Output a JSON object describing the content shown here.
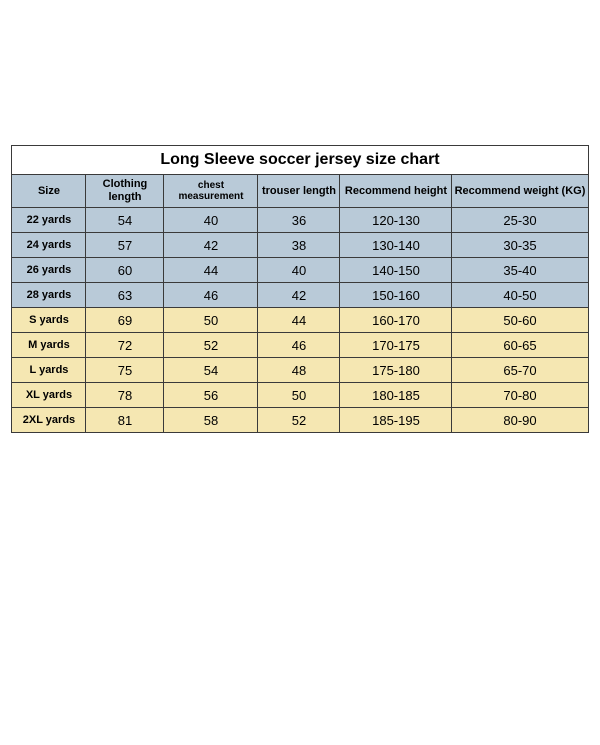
{
  "table": {
    "title": "Long Sleeve soccer jersey size chart",
    "columns": [
      "Size",
      "Clothing length",
      "chest measurement",
      "trouser length",
      "Recommend height",
      "Recommend weight (KG)"
    ],
    "rows": [
      {
        "group": "blue",
        "cells": [
          "22 yards",
          "54",
          "40",
          "36",
          "120-130",
          "25-30"
        ]
      },
      {
        "group": "blue",
        "cells": [
          "24 yards",
          "57",
          "42",
          "38",
          "130-140",
          "30-35"
        ]
      },
      {
        "group": "blue",
        "cells": [
          "26 yards",
          "60",
          "44",
          "40",
          "140-150",
          "35-40"
        ]
      },
      {
        "group": "blue",
        "cells": [
          "28 yards",
          "63",
          "46",
          "42",
          "150-160",
          "40-50"
        ]
      },
      {
        "group": "yellow",
        "cells": [
          "S yards",
          "69",
          "50",
          "44",
          "160-170",
          "50-60"
        ]
      },
      {
        "group": "yellow",
        "cells": [
          "M yards",
          "72",
          "52",
          "46",
          "170-175",
          "60-65"
        ]
      },
      {
        "group": "yellow",
        "cells": [
          "L yards",
          "75",
          "54",
          "48",
          "175-180",
          "65-70"
        ]
      },
      {
        "group": "yellow",
        "cells": [
          "XL yards",
          "78",
          "56",
          "50",
          "180-185",
          "70-80"
        ]
      },
      {
        "group": "yellow",
        "cells": [
          "2XL yards",
          "81",
          "58",
          "52",
          "185-195",
          "80-90"
        ]
      }
    ],
    "colors": {
      "header_bg": "#b9cad8",
      "blue_bg": "#b9cad8",
      "yellow_bg": "#f5e7b2",
      "border": "#3a3a3a",
      "title_bg": "#ffffff"
    }
  }
}
